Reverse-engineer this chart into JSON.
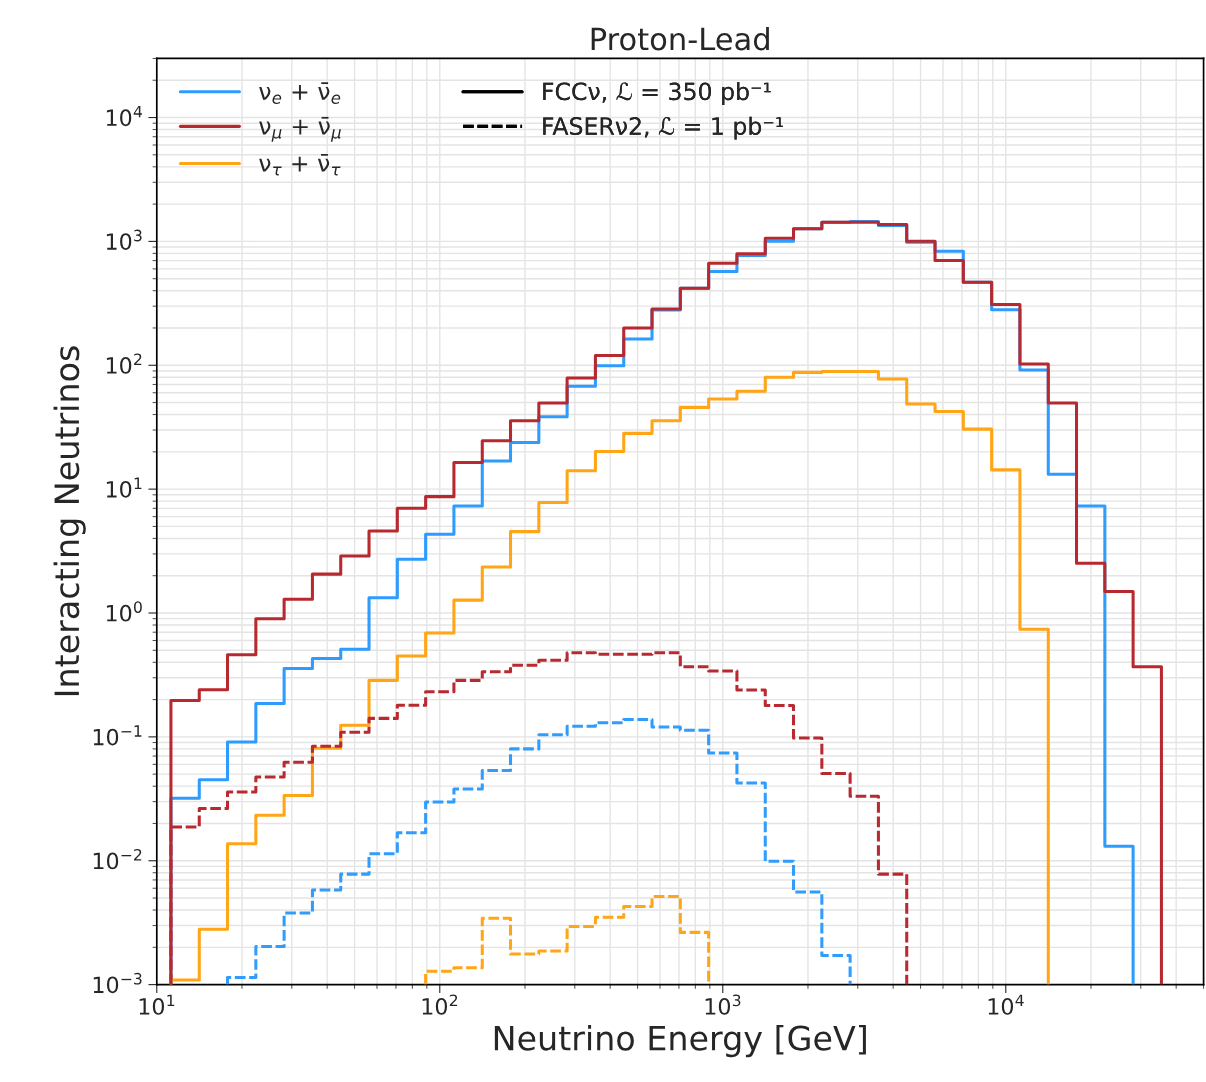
{
  "chart_data": {
    "type": "histogram",
    "title": "Proton-Lead",
    "xlabel": "Neutrino Energy [GeV]",
    "ylabel": "Interacting Neutrinos",
    "bins": [
      11.22,
      14.13,
      17.78,
      22.39,
      28.18,
      35.48,
      44.67,
      56.23,
      70.79,
      89.13,
      112.2,
      141.3,
      177.8,
      223.9,
      281.8,
      354.8,
      446.7,
      562.3,
      707.9,
      891.3,
      1122,
      1413,
      1778,
      2239,
      2818,
      3548,
      4467,
      5623,
      7079,
      8913,
      11220,
      14130,
      17780,
      22390,
      28180,
      35480
    ],
    "series": [
      {
        "name": "ν$_{e}$ + ν̄$_{e}$",
        "color": "#2e9bff",
        "line_style": "solid",
        "bins": [
          11.22,
          14.13,
          17.78,
          22.39,
          28.18,
          35.48,
          44.67,
          56.23,
          70.79,
          89.13,
          112.2,
          141.3,
          177.8,
          223.9,
          281.8,
          354.8,
          446.7,
          562.3,
          707.9,
          891.3,
          1122,
          1413,
          1778,
          2239,
          2818,
          3548,
          4467,
          5623,
          7079,
          8913,
          11220,
          14130,
          17780,
          22390,
          28180
        ],
        "values": [
          0.032,
          0.045,
          0.091,
          0.186,
          0.357,
          0.43,
          0.51,
          1.33,
          2.72,
          4.33,
          7.3,
          16.9,
          23.8,
          38.4,
          67.6,
          99,
          163,
          280,
          419,
          571,
          769,
          1004,
          1265,
          1430,
          1450,
          1345,
          986,
          834,
          468,
          281,
          91.6,
          13.2,
          7.3,
          0.0131
        ]
      },
      {
        "name": "ν$_{μ}$ + ν̄$_{μ}$",
        "color": "#b8292f",
        "line_style": "solid",
        "values": [
          0.197,
          0.24,
          0.46,
          0.9,
          1.29,
          2.06,
          2.89,
          4.6,
          7.0,
          8.7,
          16.4,
          24.6,
          35.7,
          49.6,
          79,
          120,
          200,
          285,
          419,
          667,
          794,
          1062,
          1265,
          1430,
          1430,
          1370,
          1004,
          701,
          468,
          309,
          102.5,
          49.6,
          2.52,
          1.49,
          0.368
        ]
      },
      {
        "name": "ν$_{τ}$ + ν̄$_{τ}$",
        "color": "#ffa516",
        "line_style": "solid",
        "bins": [
          11.22,
          14.13,
          17.78,
          22.39,
          28.18,
          35.48,
          44.67,
          56.23,
          70.79,
          89.13,
          112.2,
          141.3,
          177.8,
          223.9,
          281.8,
          354.8,
          446.7,
          562.3,
          707.9,
          891.3,
          1122,
          1413,
          1778,
          2239,
          2818,
          3548,
          4467,
          5623,
          7079,
          8913,
          11220,
          14130
        ],
        "values": [
          0.00109,
          0.0028,
          0.0137,
          0.0233,
          0.0336,
          0.081,
          0.124,
          0.286,
          0.45,
          0.69,
          1.27,
          2.35,
          4.54,
          7.8,
          14.1,
          20.1,
          28.2,
          35.7,
          45.7,
          53.5,
          61.6,
          80,
          87.6,
          89,
          89,
          77.5,
          48.6,
          42.4,
          30.5,
          14.3,
          0.74
        ]
      },
      {
        "color": "#2f9cfe",
        "line_style": "dashed",
        "bins": [
          17.78,
          22.39,
          28.18,
          35.48,
          44.67,
          56.23,
          70.79,
          89.13,
          112.2,
          141.3,
          177.8,
          223.9,
          281.8,
          354.8,
          446.7,
          562.3,
          707.9,
          891.3,
          1122,
          1413,
          1778,
          2239,
          2818
        ],
        "values": [
          0.00114,
          0.00203,
          0.00378,
          0.0058,
          0.0078,
          0.0114,
          0.0168,
          0.0298,
          0.038,
          0.0535,
          0.08,
          0.104,
          0.122,
          0.13,
          0.138,
          0.12,
          0.113,
          0.074,
          0.0425,
          0.0099,
          0.0056,
          0.00172
        ]
      },
      {
        "color": "#b92a30",
        "line_style": "dashed",
        "bins": [
          11.22,
          14.13,
          17.78,
          22.39,
          28.18,
          35.48,
          44.67,
          56.23,
          70.79,
          89.13,
          112.2,
          141.3,
          177.8,
          223.9,
          281.8,
          354.8,
          446.7,
          562.3,
          707.9,
          891.3,
          1122,
          1413,
          1778,
          2239,
          2818,
          3548,
          4467
        ],
        "values": [
          0.0187,
          0.0264,
          0.0359,
          0.0475,
          0.0624,
          0.084,
          0.109,
          0.141,
          0.18,
          0.231,
          0.286,
          0.336,
          0.378,
          0.415,
          0.478,
          0.464,
          0.464,
          0.478,
          0.368,
          0.34,
          0.239,
          0.179,
          0.098,
          0.0506,
          0.0332,
          0.0078
        ]
      },
      {
        "color": "#fea617",
        "line_style": "dashed",
        "bins": [
          89.13,
          112.2,
          141.3,
          177.8,
          223.9,
          281.8,
          354.8,
          446.7,
          562.3,
          707.9,
          891.3
        ],
        "values": [
          0.00128,
          0.00137,
          0.00344,
          0.00177,
          0.00187,
          0.00295,
          0.0035,
          0.00428,
          0.00515,
          0.00264
        ]
      }
    ],
    "annotations": [
      "FCCν, ℒ = 350 pb⁻¹",
      "FASERν2, ℒ = 1 pb⁻¹"
    ],
    "log": "xy",
    "xlim": [
      10,
      50000
    ],
    "xticks": [
      {
        "value": 10,
        "label": "10$^{1}$"
      },
      {
        "value": 100,
        "label": "10$^{2}$"
      },
      {
        "value": 1000,
        "label": "10$^{3}$"
      },
      {
        "value": 10000,
        "label": "10$^{4}$"
      }
    ],
    "ylim": [
      0.001,
      30000
    ],
    "yticks": [
      {
        "value": 0.001,
        "label": "10$^{−3}$"
      },
      {
        "value": 0.01,
        "label": "10$^{−2}$"
      },
      {
        "value": 0.1,
        "label": "10$^{−1}$"
      },
      {
        "value": 1,
        "label": "10$^{0}$"
      },
      {
        "value": 10,
        "label": "10$^{1}$"
      },
      {
        "value": 100,
        "label": "10$^{2}$"
      },
      {
        "value": 1000,
        "label": "10$^{3}$"
      },
      {
        "value": 10000,
        "label": "10$^{4}$"
      }
    ],
    "grid": true,
    "legend": "top left"
  }
}
